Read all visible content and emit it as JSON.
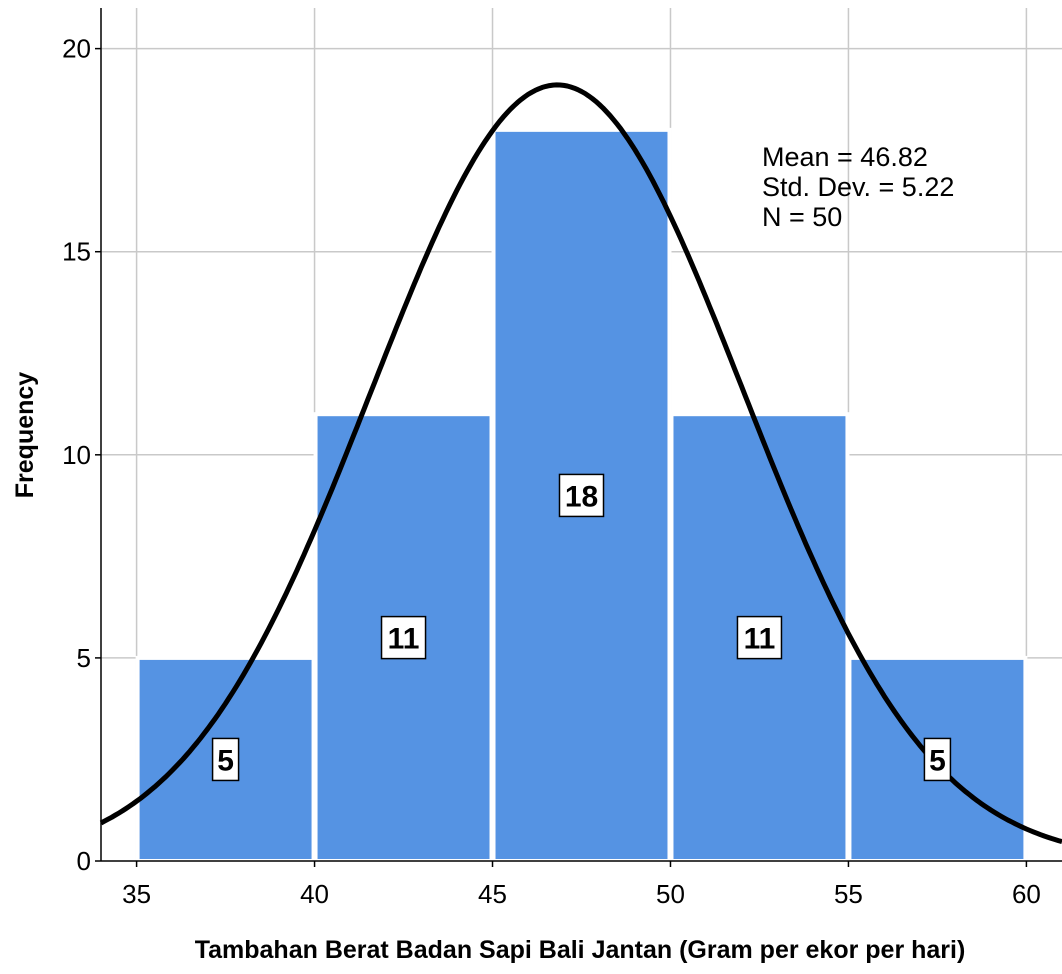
{
  "chart_data": {
    "type": "bar",
    "subtype": "histogram",
    "bins": [
      {
        "from": 35,
        "to": 40,
        "value": 5
      },
      {
        "from": 40,
        "to": 45,
        "value": 11
      },
      {
        "from": 45,
        "to": 50,
        "value": 18
      },
      {
        "from": 50,
        "to": 55,
        "value": 11
      },
      {
        "from": 55,
        "to": 60,
        "value": 5
      }
    ],
    "data_labels": [
      "5",
      "11",
      "18",
      "11",
      "5"
    ],
    "xlabel": "Tambahan Berat Badan  Sapi Bali Jantan (Gram per ekor per hari)",
    "ylabel": "Frequency",
    "xlim": [
      34,
      61
    ],
    "ylim": [
      0,
      21
    ],
    "x_ticks": [
      35,
      40,
      45,
      50,
      55,
      60
    ],
    "y_ticks": [
      0,
      5,
      10,
      15,
      20
    ],
    "grid": true,
    "normal_curve": {
      "mean": 46.82,
      "std_dev": 5.22,
      "n": 50,
      "bin_width": 5
    },
    "stats_lines": [
      "Mean = 46.82",
      "Std. Dev. = 5.22",
      "N = 50"
    ],
    "colors": {
      "bar_fill": "#5593e3",
      "bar_edge": "#ffffff",
      "grid": "#c9c9c9",
      "curve": "#000000"
    }
  }
}
